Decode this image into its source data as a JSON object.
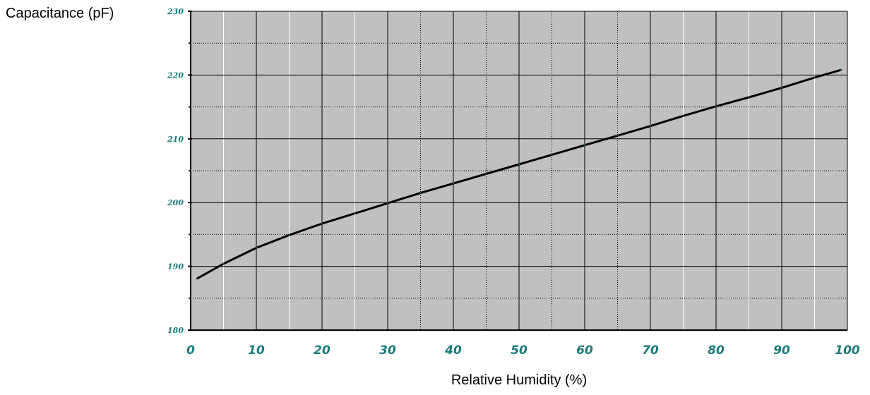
{
  "chart_data": {
    "type": "line",
    "title": "",
    "xlabel": "Relative Humidity (%)",
    "ylabel": "Capacitance (pF)",
    "xlim": [
      0,
      100
    ],
    "ylim": [
      180,
      230
    ],
    "x_ticks": [
      0,
      10,
      20,
      30,
      40,
      50,
      60,
      70,
      80,
      90,
      100
    ],
    "x_tick_labels": [
      "0",
      "10",
      "20",
      "30",
      "40",
      "50",
      "60",
      "70",
      "80",
      "90",
      "100"
    ],
    "y_ticks": [
      180,
      190,
      200,
      210,
      220,
      230
    ],
    "y_tick_labels": [
      "180",
      "190",
      "200",
      "210",
      "220",
      "230"
    ],
    "grid": true,
    "legend": "none",
    "colors": {
      "plot_background": "#c0c0c0",
      "grid_major": "#000000",
      "grid_minor_x": "#ffffff",
      "grid_minor_y": "#000000",
      "curve": "#000000",
      "tick_label": "#1a7a7a"
    },
    "series": [
      {
        "x": [
          1,
          5,
          10,
          15,
          20,
          25,
          30,
          35,
          40,
          45,
          50,
          55,
          60,
          65,
          70,
          75,
          80,
          85,
          90,
          95,
          99
        ],
        "values": [
          188.1,
          190.4,
          192.9,
          194.9,
          196.7,
          198.3,
          199.9,
          201.5,
          203.0,
          204.5,
          206.0,
          207.5,
          209.0,
          210.5,
          212.0,
          213.6,
          215.1,
          216.5,
          218.0,
          219.6,
          220.8
        ]
      }
    ]
  }
}
